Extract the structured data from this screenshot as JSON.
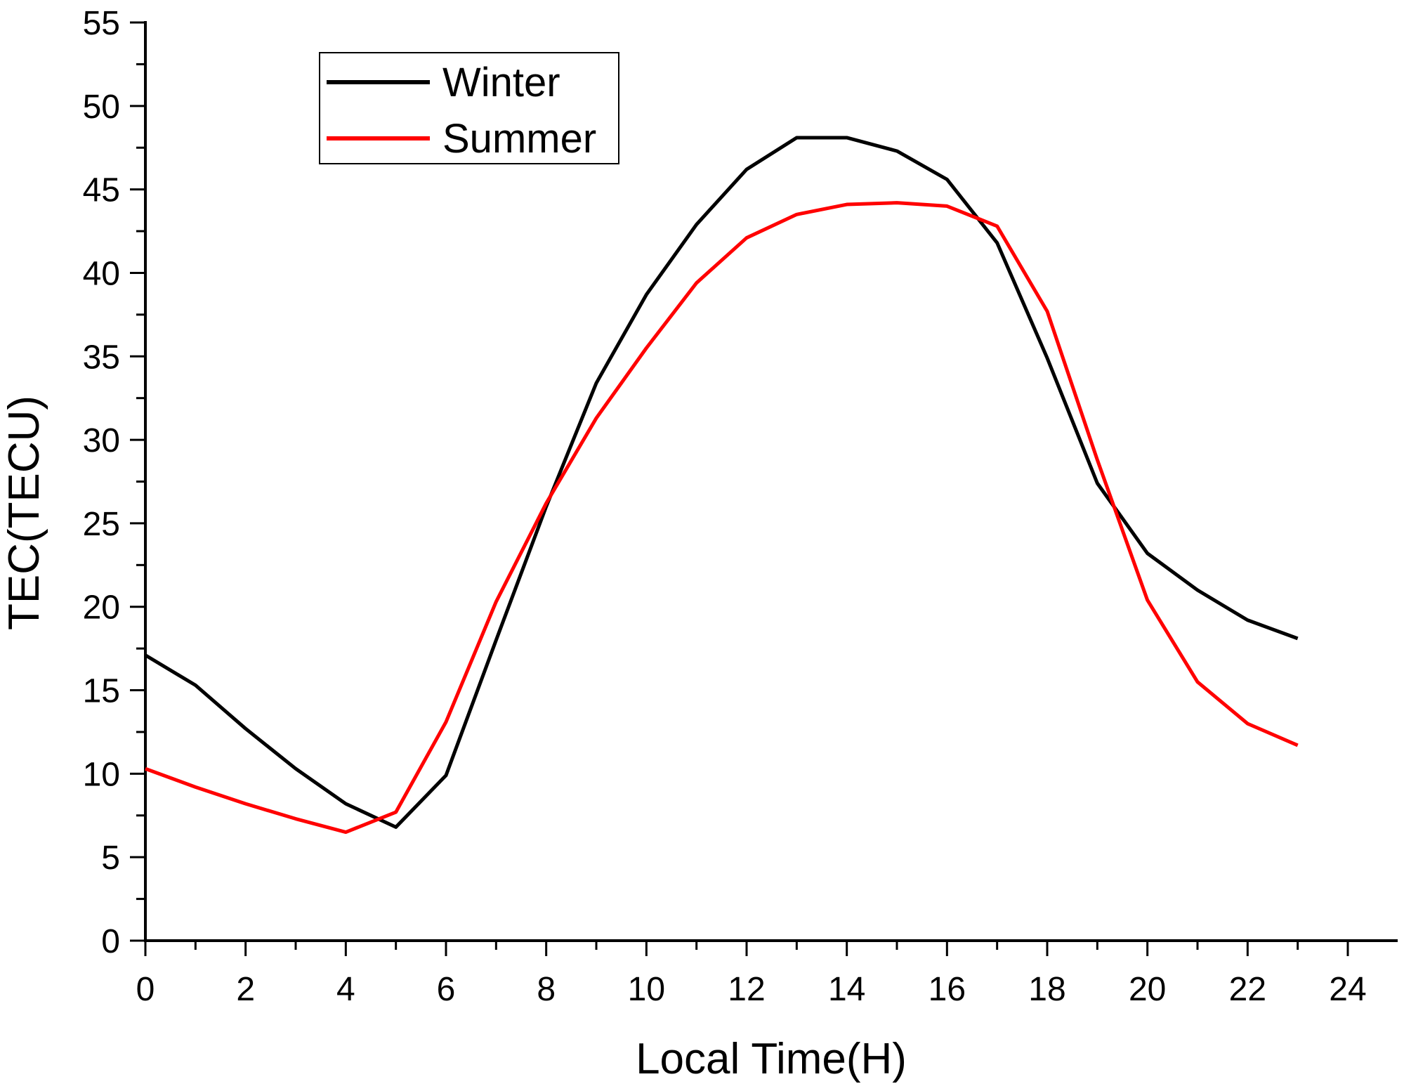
{
  "chart_data": {
    "type": "line",
    "title": "",
    "xlabel": "Local Time(H)",
    "ylabel": "TEC(TECU)",
    "xlim": [
      0,
      24
    ],
    "ylim": [
      0,
      55
    ],
    "xticks": [
      0,
      2,
      4,
      6,
      8,
      10,
      12,
      14,
      16,
      18,
      20,
      22,
      24
    ],
    "yticks": [
      0,
      5,
      10,
      15,
      20,
      25,
      30,
      35,
      40,
      45,
      50,
      55
    ],
    "grid": false,
    "legend_position": "top-left",
    "x": [
      0,
      1,
      2,
      3,
      4,
      5,
      6,
      7,
      8,
      9,
      10,
      11,
      12,
      13,
      14,
      15,
      16,
      17,
      18,
      19,
      20,
      21,
      22,
      23
    ],
    "series": [
      {
        "name": "Winter",
        "color": "#000000",
        "values": [
          17.1,
          15.3,
          12.7,
          10.3,
          8.2,
          6.8,
          9.9,
          18.0,
          26.0,
          33.4,
          38.7,
          42.9,
          46.2,
          48.1,
          48.1,
          47.3,
          45.6,
          41.8,
          34.9,
          27.4,
          23.2,
          21.0,
          19.2,
          18.1
        ]
      },
      {
        "name": "Summer",
        "color": "#ff0000",
        "values": [
          10.3,
          9.2,
          8.2,
          7.3,
          6.5,
          7.7,
          13.1,
          20.3,
          26.2,
          31.3,
          35.5,
          39.4,
          42.1,
          43.5,
          44.1,
          44.2,
          44.0,
          42.8,
          37.7,
          28.8,
          20.4,
          15.5,
          13.0,
          11.7
        ]
      }
    ]
  }
}
